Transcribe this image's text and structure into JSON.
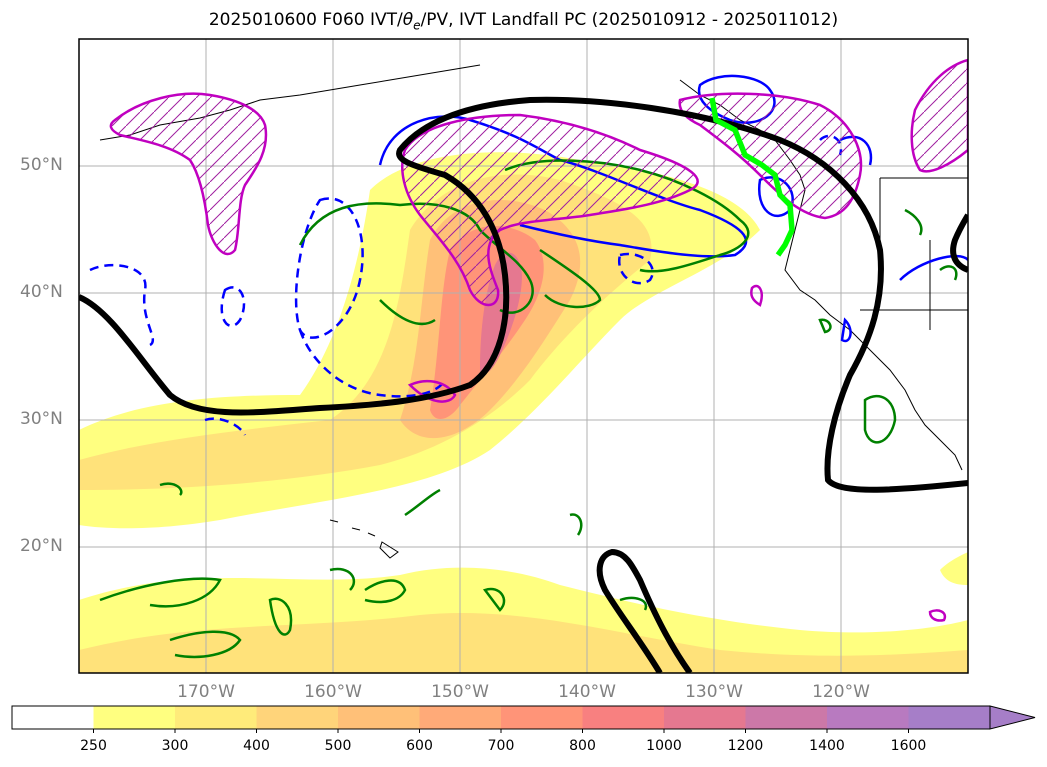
{
  "title_prefix": "2025010600 F060 IVT/",
  "title_theta": "θ",
  "title_sub": "e",
  "title_suffix": "/PV, IVT Landfall PC (2025010912 - 2025011012)",
  "lat_labels": [
    "50°N",
    "40°N",
    "30°N",
    "20°N"
  ],
  "lon_labels": [
    "170°W",
    "160°W",
    "150°W",
    "140°W",
    "130°W",
    "120°W"
  ],
  "colorbar": {
    "levels": [
      "250",
      "300",
      "400",
      "500",
      "600",
      "700",
      "800",
      "1000",
      "1200",
      "1400",
      "1600"
    ],
    "colors": [
      "#ffffff",
      "#ffff80",
      "#ffeb7a",
      "#ffd47a",
      "#ffc078",
      "#ffaa78",
      "#ff9478",
      "#f88080",
      "#e57890",
      "#cc78a8",
      "#b87ac0",
      "#a67ec8"
    ],
    "extend": "max"
  }
}
